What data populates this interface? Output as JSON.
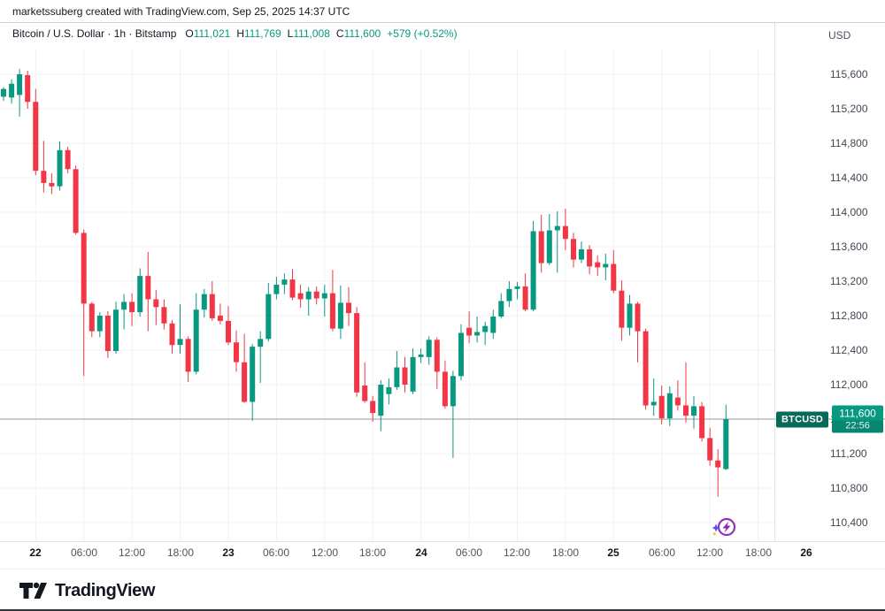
{
  "watermark": "marketssuberg created with TradingView.com, Sep 25, 2025 14:37 UTC",
  "header": {
    "symbol_title": "Bitcoin / U.S. Dollar · 1h · Bitstamp",
    "ohlc": {
      "o_label": "O",
      "o": "111,021",
      "h_label": "H",
      "h": "111,769",
      "l_label": "L",
      "l": "111,008",
      "c_label": "C",
      "c": "111,600",
      "change": "+579 (+0.52%)"
    },
    "currency": "USD"
  },
  "price_scale": {
    "labels": [
      {
        "label": "115,600",
        "value": 115600
      },
      {
        "label": "115,200",
        "value": 115200
      },
      {
        "label": "114,800",
        "value": 114800
      },
      {
        "label": "114,400",
        "value": 114400
      },
      {
        "label": "114,000",
        "value": 114000
      },
      {
        "label": "113,600",
        "value": 113600
      },
      {
        "label": "113,200",
        "value": 113200
      },
      {
        "label": "112,800",
        "value": 112800
      },
      {
        "label": "112,400",
        "value": 112400
      },
      {
        "label": "112,000",
        "value": 112000
      },
      {
        "label": "111,600",
        "value": 111600
      },
      {
        "label": "111,200",
        "value": 111200
      },
      {
        "label": "110,800",
        "value": 110800
      },
      {
        "label": "110,400",
        "value": 110400
      }
    ]
  },
  "time_scale": {
    "ticks": [
      {
        "index": 4,
        "label": "22",
        "day": true
      },
      {
        "index": 10,
        "label": "06:00",
        "day": false
      },
      {
        "index": 16,
        "label": "12:00",
        "day": false
      },
      {
        "index": 22,
        "label": "18:00",
        "day": false
      },
      {
        "index": 28,
        "label": "23",
        "day": true
      },
      {
        "index": 34,
        "label": "06:00",
        "day": false
      },
      {
        "index": 40,
        "label": "12:00",
        "day": false
      },
      {
        "index": 46,
        "label": "18:00",
        "day": false
      },
      {
        "index": 52,
        "label": "24",
        "day": true
      },
      {
        "index": 58,
        "label": "06:00",
        "day": false
      },
      {
        "index": 64,
        "label": "12:00",
        "day": false
      },
      {
        "index": 70,
        "label": "18:00",
        "day": false
      },
      {
        "index": 76,
        "label": "25",
        "day": true
      },
      {
        "index": 82,
        "label": "06:00",
        "day": false
      },
      {
        "index": 88,
        "label": "12:00",
        "day": false
      },
      {
        "index": 94,
        "label": "18:00",
        "day": false
      },
      {
        "index": 100,
        "label": "26",
        "day": true
      }
    ]
  },
  "price_badge": {
    "symbol": "BTCUSD",
    "price": "111,600",
    "countdown": "22:56"
  },
  "price_line": {
    "value": 111600
  },
  "footer": {
    "brand": "TradingView"
  },
  "colors": {
    "up": "#089981",
    "down": "#f23645",
    "grid": "#f0f2f6",
    "price_line": "#9598a1",
    "badge_label_bg": "#056a5a",
    "badge_price_bg": "#089981",
    "event_purple": "#9334b5",
    "event_blue": "#5b4ff5"
  },
  "chart_data": {
    "type": "candlestick",
    "title": "Bitcoin / U.S. Dollar",
    "symbol": "BTCUSD",
    "exchange": "Bitstamp",
    "interval": "1h",
    "start_time": "2025-09-21 20:00 UTC",
    "end_time": "2025-09-25 14:00 UTC",
    "y_axis_range": [
      110400,
      115600
    ],
    "grid": true,
    "last_close": 111600,
    "columns": [
      "open",
      "high",
      "low",
      "close"
    ],
    "candles": [
      [
        115340,
        115450,
        115290,
        115430
      ],
      [
        115330,
        115540,
        115260,
        115490
      ],
      [
        115360,
        115660,
        115110,
        115600
      ],
      [
        115590,
        115640,
        115200,
        115280
      ],
      [
        115280,
        115430,
        114430,
        114480
      ],
      [
        114480,
        114830,
        114230,
        114340
      ],
      [
        114340,
        114450,
        114210,
        114300
      ],
      [
        114300,
        114820,
        114250,
        114720
      ],
      [
        114720,
        114760,
        114450,
        114500
      ],
      [
        114500,
        114540,
        113740,
        113760
      ],
      [
        113760,
        113800,
        112100,
        112940
      ],
      [
        112940,
        112960,
        112550,
        112620
      ],
      [
        112620,
        112840,
        112550,
        112800
      ],
      [
        112800,
        112850,
        112310,
        112390
      ],
      [
        112390,
        112960,
        112360,
        112870
      ],
      [
        112870,
        113050,
        112640,
        112960
      ],
      [
        112960,
        113060,
        112680,
        112840
      ],
      [
        112840,
        113350,
        112790,
        113260
      ],
      [
        113260,
        113540,
        112620,
        112990
      ],
      [
        112990,
        113100,
        112690,
        112900
      ],
      [
        112900,
        112990,
        112640,
        112710
      ],
      [
        112710,
        112750,
        112360,
        112460
      ],
      [
        112460,
        112930,
        112360,
        112530
      ],
      [
        112530,
        112560,
        112030,
        112150
      ],
      [
        112150,
        113060,
        112120,
        112870
      ],
      [
        112870,
        113110,
        112780,
        113050
      ],
      [
        113050,
        113200,
        112740,
        112770
      ],
      [
        112800,
        112940,
        112700,
        112740
      ],
      [
        112740,
        112910,
        112460,
        112490
      ],
      [
        112490,
        112630,
        112150,
        112260
      ],
      [
        112260,
        112590,
        111790,
        111800
      ],
      [
        111800,
        112470,
        111580,
        112440
      ],
      [
        112440,
        112620,
        112020,
        112530
      ],
      [
        112530,
        113180,
        112500,
        113050
      ],
      [
        113050,
        113250,
        112990,
        113160
      ],
      [
        113160,
        113290,
        113050,
        113220
      ],
      [
        113220,
        113340,
        112980,
        113010
      ],
      [
        113060,
        113160,
        112890,
        112990
      ],
      [
        112990,
        113130,
        112800,
        113080
      ],
      [
        113080,
        113140,
        112930,
        113000
      ],
      [
        113000,
        113160,
        112790,
        113060
      ],
      [
        113060,
        113330,
        112620,
        112650
      ],
      [
        112650,
        113150,
        112530,
        112950
      ],
      [
        112950,
        113130,
        112680,
        112830
      ],
      [
        112830,
        112900,
        111860,
        111910
      ],
      [
        111990,
        112260,
        111790,
        111810
      ],
      [
        111810,
        111870,
        111570,
        111670
      ],
      [
        111640,
        112050,
        111460,
        112000
      ],
      [
        111890,
        112070,
        111770,
        111970
      ],
      [
        111970,
        112390,
        111940,
        112200
      ],
      [
        112200,
        112320,
        111910,
        112000
      ],
      [
        111920,
        112420,
        111890,
        112320
      ],
      [
        112320,
        112420,
        112250,
        112350
      ],
      [
        112320,
        112560,
        112230,
        112520
      ],
      [
        112520,
        112550,
        111950,
        112150
      ],
      [
        112150,
        112280,
        111720,
        111750
      ],
      [
        111750,
        112160,
        111150,
        112100
      ],
      [
        112100,
        112700,
        112050,
        112600
      ],
      [
        112660,
        112850,
        112480,
        112570
      ],
      [
        112570,
        112790,
        112490,
        112610
      ],
      [
        112610,
        112730,
        112460,
        112680
      ],
      [
        112600,
        112870,
        112530,
        112790
      ],
      [
        112790,
        113060,
        112770,
        112970
      ],
      [
        112970,
        113200,
        112900,
        113110
      ],
      [
        113110,
        113190,
        112990,
        113140
      ],
      [
        113140,
        113290,
        112850,
        112870
      ],
      [
        112870,
        113900,
        112850,
        113780
      ],
      [
        113780,
        113970,
        113300,
        113410
      ],
      [
        113410,
        113980,
        113390,
        113790
      ],
      [
        113790,
        114010,
        113300,
        113840
      ],
      [
        113840,
        114040,
        113560,
        113690
      ],
      [
        113690,
        113760,
        113360,
        113450
      ],
      [
        113450,
        113660,
        113410,
        113570
      ],
      [
        113570,
        113620,
        113280,
        113370
      ],
      [
        113420,
        113500,
        113260,
        113360
      ],
      [
        113360,
        113520,
        113210,
        113400
      ],
      [
        113400,
        113560,
        113060,
        113090
      ],
      [
        113090,
        113210,
        112510,
        112660
      ],
      [
        112660,
        113040,
        112570,
        112940
      ],
      [
        112940,
        112960,
        112260,
        112620
      ],
      [
        112620,
        112650,
        111710,
        111760
      ],
      [
        111760,
        112070,
        111640,
        111800
      ],
      [
        111870,
        111990,
        111540,
        111610
      ],
      [
        111610,
        111980,
        111520,
        111900
      ],
      [
        111850,
        112050,
        111700,
        111760
      ],
      [
        111760,
        112260,
        111560,
        111640
      ],
      [
        111640,
        111870,
        111490,
        111750
      ],
      [
        111750,
        111800,
        111340,
        111380
      ],
      [
        111380,
        111500,
        111060,
        111120
      ],
      [
        111120,
        111250,
        110700,
        111040
      ],
      [
        111021,
        111769,
        111008,
        111600
      ]
    ]
  }
}
